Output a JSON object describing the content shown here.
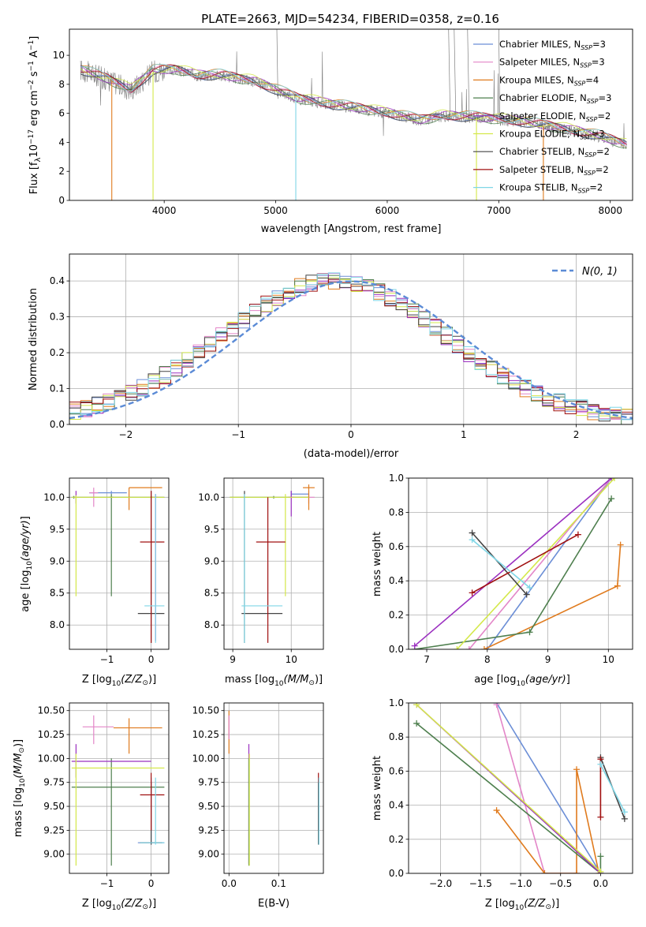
{
  "title": "PLATE=2663, MJD=54234, FIBERID=0358, z=0.16",
  "colors": {
    "Chabrier MILES": "#6b8ed6",
    "Salpeter MILES": "#e386c8",
    "Kroupa MILES": "#e07b1e",
    "Chabrier ELODIE": "#4e7f4e",
    "Salpeter ELODIE": "#9b30c0",
    "Kroupa ELODIE": "#d4e84a",
    "Chabrier STELIB": "#444444",
    "Salpeter STELIB": "#a01010",
    "Kroupa STELIB": "#7fd6e6",
    "data": "#808080",
    "normal": "#5b8bd6"
  },
  "chart_data": [
    {
      "id": "spectrum",
      "type": "line",
      "xlabel": "wavelength [Angstrom, rest frame]",
      "ylabel": "Flux [f",
      "xlim": [
        3150,
        8200
      ],
      "ylim": [
        0,
        11.8
      ],
      "xticks": [
        4000,
        5000,
        6000,
        7000,
        8000
      ],
      "yticks": [
        0,
        2,
        4,
        6,
        8,
        10
      ],
      "legend_position": "upper right",
      "legend": [
        {
          "name": "Chabrier MILES",
          "nssp": "3"
        },
        {
          "name": "Salpeter MILES",
          "nssp": "3"
        },
        {
          "name": "Kroupa MILES",
          "nssp": "4"
        },
        {
          "name": "Chabrier ELODIE",
          "nssp": "3"
        },
        {
          "name": "Salpeter ELODIE",
          "nssp": "2"
        },
        {
          "name": "Kroupa ELODIE",
          "nssp": "3"
        },
        {
          "name": "Chabrier STELIB",
          "nssp": "2"
        },
        {
          "name": "Salpeter STELIB",
          "nssp": "2"
        },
        {
          "name": "Kroupa STELIB",
          "nssp": "2"
        }
      ],
      "continuum": [
        [
          3250,
          9.0
        ],
        [
          3500,
          8.3
        ],
        [
          3700,
          7.6
        ],
        [
          3900,
          8.9
        ],
        [
          4100,
          9.0
        ],
        [
          4300,
          8.6
        ],
        [
          4500,
          8.6
        ],
        [
          4800,
          8.2
        ],
        [
          5000,
          7.6
        ],
        [
          5200,
          7.0
        ],
        [
          5500,
          6.6
        ],
        [
          6000,
          6.0
        ],
        [
          6300,
          5.5
        ],
        [
          6500,
          5.8
        ],
        [
          6800,
          5.7
        ],
        [
          7200,
          5.4
        ],
        [
          7600,
          4.9
        ],
        [
          7900,
          4.4
        ],
        [
          8150,
          3.8
        ]
      ]
    },
    {
      "id": "residual-histogram",
      "type": "area",
      "xlabel": "(data-model)/error",
      "ylabel": "Normed distribution",
      "xlim": [
        -2.5,
        2.5
      ],
      "ylim": [
        0,
        0.475
      ],
      "xticks": [
        -2,
        -1,
        0,
        1,
        2
      ],
      "yticks": [
        0.0,
        0.1,
        0.2,
        0.3,
        0.4
      ],
      "grid": true,
      "legend_position": "upper right",
      "normal_label": "N(0, 1)",
      "bin_width": 0.1
    },
    {
      "id": "age-vs-Z",
      "type": "scatter",
      "xlabel": "Z [log",
      "ylabel": "age  [log",
      "xlim": [
        -1.85,
        0.4
      ],
      "ylim": [
        7.62,
        10.3
      ],
      "xticks": [
        -1,
        0
      ],
      "yticks": [
        8.0,
        8.5,
        9.0,
        9.5,
        10.0
      ],
      "grid": true,
      "points": [
        {
          "s": "Chabrier MILES",
          "x": -0.9,
          "y": 10.07,
          "xl": -1.4,
          "xh": -0.55,
          "yl": 10.05,
          "yh": 10.1
        },
        {
          "s": "Salpeter MILES",
          "x": -1.3,
          "y": 10.07,
          "xl": -1.4,
          "xh": -1.2,
          "yl": 9.85,
          "yh": 10.15
        },
        {
          "s": "Kroupa MILES",
          "x": -0.5,
          "y": 10.15,
          "xl": -0.5,
          "xh": 0.25,
          "yl": 9.8,
          "yh": 10.15
        },
        {
          "s": "Kroupa MILES",
          "x": 0.0,
          "y": 10.0,
          "xl": -0.05,
          "xh": 0.05,
          "yl": 9.98,
          "yh": 10.02
        },
        {
          "s": "Chabrier ELODIE",
          "x": -1.75,
          "y": 10.0,
          "xl": -1.8,
          "xh": 0.3,
          "yl": 9.98,
          "yh": 10.02
        },
        {
          "s": "Chabrier ELODIE",
          "x": -0.9,
          "y": 10.0,
          "xl": -0.95,
          "xh": -0.85,
          "yl": 8.45,
          "yh": 10.05
        },
        {
          "s": "Salpeter ELODIE",
          "x": 0.1,
          "y": 10.0,
          "xl": 0.05,
          "xh": 0.15,
          "yl": 7.75,
          "yh": 10.05
        },
        {
          "s": "Salpeter ELODIE",
          "x": -1.7,
          "y": 10.0,
          "xl": -1.72,
          "xh": -1.68,
          "yl": 9.9,
          "yh": 10.1
        },
        {
          "s": "Kroupa ELODIE",
          "x": -1.7,
          "y": 10.0,
          "xl": -1.8,
          "xh": 0.3,
          "yl": 8.45,
          "yh": 10.03
        },
        {
          "s": "Chabrier STELIB",
          "x": 0.0,
          "y": 8.18,
          "xl": -0.3,
          "xh": 0.3,
          "yl": 7.72,
          "yh": 10.1
        },
        {
          "s": "Salpeter STELIB",
          "x": 0.0,
          "y": 9.3,
          "xl": -0.25,
          "xh": 0.3,
          "yl": 7.72,
          "yh": 10.1
        },
        {
          "s": "Kroupa STELIB",
          "x": 0.1,
          "y": 8.3,
          "xl": -0.15,
          "xh": 0.3,
          "yl": 7.72,
          "yh": 10.05
        }
      ]
    },
    {
      "id": "age-vs-mass",
      "type": "scatter",
      "xlabel": "mass [log",
      "ylabel": "",
      "xlim": [
        8.85,
        10.55
      ],
      "ylim": [
        7.62,
        10.3
      ],
      "xticks": [
        9,
        10
      ],
      "yticks": [
        8.0,
        8.5,
        9.0,
        9.5,
        10.0
      ],
      "grid": true,
      "points": [
        {
          "s": "Chabrier MILES",
          "x": 10.0,
          "y": 10.05,
          "xl": 10.0,
          "xh": 10.3,
          "yl": 10.0,
          "yh": 10.1
        },
        {
          "s": "Salpeter MILES",
          "x": 10.3,
          "y": 10.0,
          "xl": 10.0,
          "xh": 10.4,
          "yl": 9.9,
          "yh": 10.1
        },
        {
          "s": "Kroupa MILES",
          "x": 10.3,
          "y": 10.15,
          "xl": 10.2,
          "xh": 10.4,
          "yl": 9.8,
          "yh": 10.2
        },
        {
          "s": "Chabrier ELODIE",
          "x": 9.7,
          "y": 10.0,
          "xl": 8.95,
          "xh": 10.3,
          "yl": 9.98,
          "yh": 10.02
        },
        {
          "s": "Salpeter ELODIE",
          "x": 10.0,
          "y": 10.0,
          "xl": 9.95,
          "xh": 10.05,
          "yl": 9.7,
          "yh": 10.1
        },
        {
          "s": "Kroupa ELODIE",
          "x": 9.9,
          "y": 10.0,
          "xl": 8.95,
          "xh": 10.3,
          "yl": 8.45,
          "yh": 10.05
        },
        {
          "s": "Chabrier STELIB",
          "x": 9.2,
          "y": 8.18,
          "xl": 9.15,
          "xh": 9.85,
          "yl": 7.72,
          "yh": 10.1
        },
        {
          "s": "Salpeter STELIB",
          "x": 9.6,
          "y": 9.3,
          "xl": 9.4,
          "xh": 9.9,
          "yl": 7.72,
          "yh": 10.0
        },
        {
          "s": "Kroupa STELIB",
          "x": 9.2,
          "y": 8.3,
          "xl": 9.15,
          "xh": 9.85,
          "yl": 7.72,
          "yh": 10.05
        }
      ]
    },
    {
      "id": "weight-vs-age",
      "type": "line",
      "xlabel": "age  [log",
      "ylabel": "mass weight",
      "xlim": [
        6.7,
        10.4
      ],
      "ylim": [
        0,
        1.0
      ],
      "xticks": [
        7,
        8,
        9,
        10
      ],
      "yticks": [
        0.0,
        0.2,
        0.4,
        0.6,
        0.8,
        1.0
      ],
      "grid": true,
      "series": [
        {
          "s": "Chabrier MILES",
          "pts": [
            [
              8.0,
              0.0
            ],
            [
              10.05,
              1.0
            ]
          ]
        },
        {
          "s": "Salpeter MILES",
          "pts": [
            [
              7.7,
              0.0
            ],
            [
              10.05,
              1.0
            ]
          ]
        },
        {
          "s": "Kroupa MILES",
          "pts": [
            [
              7.95,
              0.0
            ],
            [
              10.15,
              0.37
            ],
            [
              10.2,
              0.61
            ]
          ]
        },
        {
          "s": "Chabrier ELODIE",
          "pts": [
            [
              6.8,
              0.0
            ],
            [
              8.7,
              0.1
            ],
            [
              10.05,
              0.88
            ]
          ]
        },
        {
          "s": "Salpeter ELODIE",
          "pts": [
            [
              6.8,
              0.02
            ],
            [
              10.05,
              1.0
            ]
          ]
        },
        {
          "s": "Kroupa ELODIE",
          "pts": [
            [
              7.5,
              0.0
            ],
            [
              10.1,
              1.0
            ]
          ]
        },
        {
          "s": "Chabrier STELIB",
          "pts": [
            [
              7.75,
              0.68
            ],
            [
              8.65,
              0.32
            ]
          ]
        },
        {
          "s": "Salpeter STELIB",
          "pts": [
            [
              7.75,
              0.33
            ],
            [
              9.5,
              0.67
            ]
          ]
        },
        {
          "s": "Kroupa STELIB",
          "pts": [
            [
              7.75,
              0.64
            ],
            [
              8.7,
              0.36
            ]
          ]
        }
      ]
    },
    {
      "id": "mass-vs-Z",
      "type": "scatter",
      "xlabel": "Z [log",
      "ylabel": "mass [log",
      "xlim": [
        -1.85,
        0.4
      ],
      "ylim": [
        8.8,
        10.58
      ],
      "xticks": [
        -1,
        0
      ],
      "yticks": [
        9.0,
        9.25,
        9.5,
        9.75,
        10.0,
        10.25,
        10.5
      ],
      "grid": true,
      "points": [
        {
          "s": "Chabrier MILES",
          "x": 0.0,
          "y": 9.12,
          "xl": -0.3,
          "xh": 0.3,
          "yl": 9.1,
          "yh": 9.8
        },
        {
          "s": "Salpeter MILES",
          "x": -1.3,
          "y": 10.33,
          "xl": -1.55,
          "xh": -0.85,
          "yl": 10.15,
          "yh": 10.45
        },
        {
          "s": "Kroupa MILES",
          "x": -0.5,
          "y": 10.32,
          "xl": -0.85,
          "xh": 0.25,
          "yl": 10.05,
          "yh": 10.42
        },
        {
          "s": "Chabrier ELODIE",
          "x": -0.9,
          "y": 9.7,
          "xl": -1.8,
          "xh": 0.3,
          "yl": 8.88,
          "yh": 10.0
        },
        {
          "s": "Salpeter ELODIE",
          "x": -1.7,
          "y": 9.97,
          "xl": -1.8,
          "xh": 0.0,
          "yl": 9.8,
          "yh": 10.15
        },
        {
          "s": "Kroupa ELODIE",
          "x": -1.7,
          "y": 9.9,
          "xl": -1.8,
          "xh": 0.3,
          "yl": 8.88,
          "yh": 10.05
        },
        {
          "s": "Chabrier STELIB",
          "x": 0.0,
          "y": 9.12,
          "xl": -0.25,
          "xh": 0.25,
          "yl": 9.1,
          "yh": 9.75
        },
        {
          "s": "Salpeter STELIB",
          "x": 0.0,
          "y": 9.62,
          "xl": -0.25,
          "xh": 0.3,
          "yl": 9.25,
          "yh": 9.85
        },
        {
          "s": "Kroupa STELIB",
          "x": 0.1,
          "y": 9.12,
          "xl": -0.25,
          "xh": 0.3,
          "yl": 9.1,
          "yh": 9.8
        }
      ]
    },
    {
      "id": "mass-vs-EBV",
      "type": "scatter",
      "xlabel": "E(B-V)",
      "ylabel": "",
      "xlim": [
        -0.01,
        0.19
      ],
      "ylim": [
        8.8,
        10.58
      ],
      "xticks": [
        0.0,
        0.1
      ],
      "yticks": [
        9.0,
        9.25,
        9.5,
        9.75,
        10.0,
        10.25,
        10.5
      ],
      "grid": true,
      "points": [
        {
          "s": "Kroupa MILES",
          "x": 0.0,
          "y": 10.3,
          "xl": 0.0,
          "xh": 0.0,
          "yl": 10.05,
          "yh": 10.5
        },
        {
          "s": "Salpeter MILES",
          "x": 0.0,
          "y": 10.35,
          "xl": 0.0,
          "xh": 0.0,
          "yl": 10.2,
          "yh": 10.45
        },
        {
          "s": "Salpeter ELODIE",
          "x": 0.04,
          "y": 10.0,
          "xl": 0.04,
          "xh": 0.04,
          "yl": 8.9,
          "yh": 10.15
        },
        {
          "s": "Chabrier ELODIE",
          "x": 0.04,
          "y": 9.7,
          "xl": 0.04,
          "xh": 0.04,
          "yl": 8.88,
          "yh": 10.0
        },
        {
          "s": "Kroupa ELODIE",
          "x": 0.041,
          "y": 9.9,
          "xl": 0.041,
          "xh": 0.041,
          "yl": 8.88,
          "yh": 10.05
        },
        {
          "s": "Salpeter STELIB",
          "x": 0.18,
          "y": 9.62,
          "xl": 0.18,
          "xh": 0.18,
          "yl": 9.25,
          "yh": 9.85
        },
        {
          "s": "Chabrier STELIB",
          "x": 0.18,
          "y": 9.12,
          "xl": 0.18,
          "xh": 0.18,
          "yl": 9.1,
          "yh": 9.75
        },
        {
          "s": "Kroupa STELIB",
          "x": 0.181,
          "y": 9.12,
          "xl": 0.181,
          "xh": 0.181,
          "yl": 9.1,
          "yh": 9.8
        }
      ]
    },
    {
      "id": "weight-vs-Z",
      "type": "line",
      "xlabel": "Z [log",
      "ylabel": "mass weight",
      "xlim": [
        -2.4,
        0.4
      ],
      "ylim": [
        0,
        1.0
      ],
      "xticks": [
        -2.0,
        -1.5,
        -1.0,
        -0.5,
        0.0
      ],
      "yticks": [
        0.0,
        0.2,
        0.4,
        0.6,
        0.8,
        1.0
      ],
      "grid": true,
      "series": [
        {
          "s": "Chabrier MILES",
          "pts": [
            [
              -1.3,
              1.0
            ],
            [
              0.0,
              0.0
            ]
          ]
        },
        {
          "s": "Salpeter MILES",
          "pts": [
            [
              -1.3,
              0.99
            ],
            [
              -0.7,
              0.0
            ],
            [
              -0.3,
              0.0
            ]
          ]
        },
        {
          "s": "Kroupa MILES",
          "pts": [
            [
              -1.3,
              0.37
            ],
            [
              -0.7,
              0.0
            ],
            [
              -0.3,
              0.0
            ],
            [
              -0.3,
              0.61
            ],
            [
              -0.02,
              0.0
            ]
          ]
        },
        {
          "s": "Chabrier ELODIE",
          "pts": [
            [
              -2.3,
              0.88
            ],
            [
              0.0,
              0.0
            ],
            [
              0.0,
              0.1
            ]
          ]
        },
        {
          "s": "Salpeter ELODIE",
          "pts": [
            [
              -2.3,
              0.99
            ],
            [
              0.0,
              0.0
            ]
          ]
        },
        {
          "s": "Kroupa ELODIE",
          "pts": [
            [
              -2.3,
              0.99
            ],
            [
              0.0,
              0.01
            ]
          ]
        },
        {
          "s": "Chabrier STELIB",
          "pts": [
            [
              0.0,
              0.68
            ],
            [
              0.3,
              0.32
            ]
          ]
        },
        {
          "s": "Salpeter STELIB",
          "pts": [
            [
              0.0,
              0.67
            ],
            [
              0.0,
              0.33
            ]
          ]
        },
        {
          "s": "Kroupa STELIB",
          "pts": [
            [
              0.0,
              0.64
            ],
            [
              0.3,
              0.36
            ]
          ]
        }
      ]
    }
  ]
}
